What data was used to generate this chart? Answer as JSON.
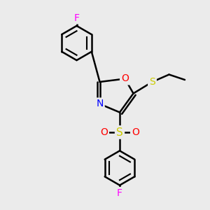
{
  "background_color": "#ebebeb",
  "bond_color": "#000000",
  "atom_colors": {
    "F": "#ff00ff",
    "O": "#ff0000",
    "N": "#0000ff",
    "S": "#cccc00"
  },
  "font_size": 10,
  "line_width": 1.8
}
